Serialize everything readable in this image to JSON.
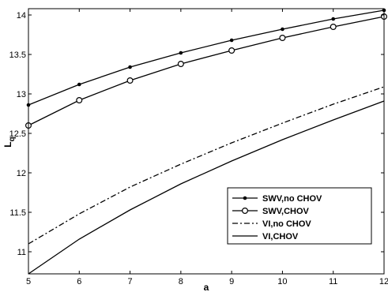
{
  "chart_data": {
    "type": "line",
    "title": "",
    "xlabel": "a",
    "ylabel": "L",
    "ylabel_subscript": "q",
    "xlim": [
      5,
      12
    ],
    "ylim": [
      10.72,
      14.08
    ],
    "xticks": [
      5,
      6,
      7,
      8,
      9,
      10,
      11,
      12
    ],
    "yticks": [
      11,
      11.5,
      12,
      12.5,
      13,
      13.5,
      14
    ],
    "ytick_labels": [
      "11",
      "11.5",
      "12",
      "12.5",
      "13",
      "13.5",
      "14"
    ],
    "grid": false,
    "legend_position": "lower-right",
    "series": [
      {
        "name": "SWV,no CHOV",
        "style": "solid",
        "marker": "dot",
        "x": [
          5,
          6,
          7,
          8,
          9,
          10,
          11,
          12
        ],
        "y": [
          12.86,
          13.12,
          13.34,
          13.52,
          13.68,
          13.82,
          13.95,
          14.06
        ]
      },
      {
        "name": "SWV,CHOV",
        "style": "solid",
        "marker": "circle",
        "x": [
          5,
          6,
          7,
          8,
          9,
          10,
          11,
          12
        ],
        "y": [
          12.6,
          12.92,
          13.17,
          13.38,
          13.55,
          13.71,
          13.85,
          13.98
        ]
      },
      {
        "name": "VI,no CHOV",
        "style": "dashdot",
        "marker": "none",
        "x": [
          5,
          6,
          7,
          8,
          9,
          10,
          11,
          12
        ],
        "y": [
          11.1,
          11.48,
          11.82,
          12.11,
          12.38,
          12.63,
          12.87,
          13.09
        ]
      },
      {
        "name": "VI,CHOV",
        "style": "solid",
        "marker": "none",
        "x": [
          5,
          6,
          7,
          8,
          9,
          10,
          11,
          12
        ],
        "y": [
          10.72,
          11.16,
          11.53,
          11.86,
          12.15,
          12.42,
          12.67,
          12.91
        ]
      }
    ]
  }
}
